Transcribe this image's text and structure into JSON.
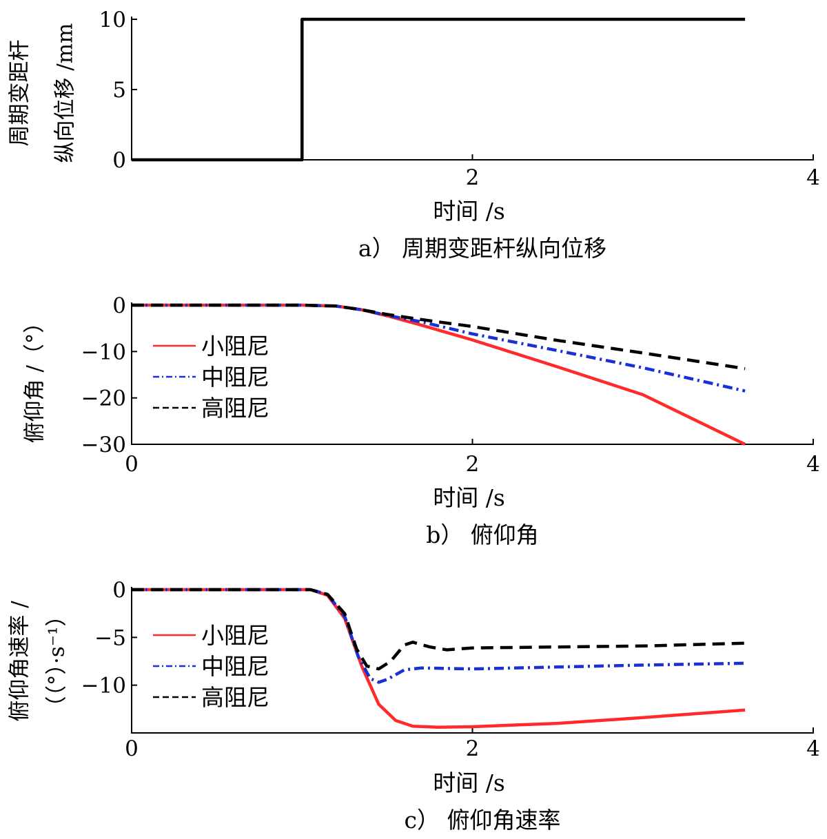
{
  "chart_data": [
    {
      "type": "line",
      "caption": "a） 周期变距杆纵向位移",
      "xlabel": "时间 /s",
      "ylabel_lines": [
        "周期变距杆",
        "纵向位移 /mm"
      ],
      "xlim": [
        0,
        4
      ],
      "ylim": [
        0,
        10
      ],
      "xticks": [
        {
          "v": 2,
          "label": "2"
        },
        {
          "v": 4,
          "label": "4"
        }
      ],
      "yticks": [
        {
          "v": 0,
          "label": "0"
        },
        {
          "v": 5,
          "label": "5"
        },
        {
          "v": 10,
          "label": "10"
        }
      ],
      "grid": false,
      "series": [
        {
          "color": "#000000",
          "dash": "solid",
          "points": [
            [
              0,
              0
            ],
            [
              1.0,
              0
            ],
            [
              1.0,
              10
            ],
            [
              3.6,
              10
            ]
          ]
        }
      ]
    },
    {
      "type": "line",
      "caption": "b） 俯仰角",
      "xlabel": "时间 /s",
      "ylabel_lines": [
        "俯仰角 /（°）"
      ],
      "xlim": [
        0,
        4
      ],
      "ylim": [
        -30,
        0
      ],
      "xticks": [
        {
          "v": 0,
          "label": "0"
        },
        {
          "v": 2,
          "label": "2"
        },
        {
          "v": 4,
          "label": "4"
        }
      ],
      "yticks": [
        {
          "v": 0,
          "label": "0"
        },
        {
          "v": -10,
          "label": "−10"
        },
        {
          "v": -20,
          "label": "−20"
        },
        {
          "v": -30,
          "label": "−30"
        }
      ],
      "grid": false,
      "legend_position": "left",
      "series": [
        {
          "name": "小阻尼",
          "color": "#ff2a2a",
          "dash": "solid",
          "points": [
            [
              0,
              0
            ],
            [
              1.0,
              0
            ],
            [
              1.2,
              -0.2
            ],
            [
              1.35,
              -1
            ],
            [
              1.5,
              -2.3
            ],
            [
              1.7,
              -4.3
            ],
            [
              2.0,
              -7.5
            ],
            [
              2.5,
              -13.3
            ],
            [
              3.0,
              -19.3
            ],
            [
              3.6,
              -30
            ]
          ]
        },
        {
          "name": "中阻尼",
          "color": "#1a2fd6",
          "dash": "dashdot",
          "points": [
            [
              0,
              0
            ],
            [
              1.0,
              0
            ],
            [
              1.2,
              -0.2
            ],
            [
              1.35,
              -1
            ],
            [
              1.5,
              -2.2
            ],
            [
              1.7,
              -3.6
            ],
            [
              2.0,
              -6.2
            ],
            [
              2.5,
              -9.8
            ],
            [
              3.0,
              -13.5
            ],
            [
              3.6,
              -18.5
            ]
          ]
        },
        {
          "name": "高阻尼",
          "color": "#000000",
          "dash": "dashed",
          "points": [
            [
              0,
              0
            ],
            [
              1.0,
              0
            ],
            [
              1.2,
              -0.2
            ],
            [
              1.35,
              -1
            ],
            [
              1.5,
              -2.0
            ],
            [
              1.7,
              -3.1
            ],
            [
              2.0,
              -4.6
            ],
            [
              2.5,
              -7.6
            ],
            [
              3.0,
              -10.3
            ],
            [
              3.6,
              -13.7
            ]
          ]
        }
      ]
    },
    {
      "type": "line",
      "caption": "c） 俯仰角速率",
      "xlabel": "时间 /s",
      "ylabel_lines": [
        "俯仰角速率 /",
        "（（°）·s⁻¹）"
      ],
      "xlim": [
        0,
        4
      ],
      "ylim": [
        -15,
        0
      ],
      "xticks": [
        {
          "v": 0,
          "label": "0"
        },
        {
          "v": 2,
          "label": "2"
        },
        {
          "v": 4,
          "label": "4"
        }
      ],
      "yticks": [
        {
          "v": 0,
          "label": "0"
        },
        {
          "v": -5,
          "label": "−5"
        },
        {
          "v": -10,
          "label": "−10"
        }
      ],
      "grid": false,
      "legend_position": "left",
      "series": [
        {
          "name": "小阻尼",
          "color": "#ff2a2a",
          "dash": "solid",
          "points": [
            [
              0,
              0
            ],
            [
              1.05,
              0
            ],
            [
              1.15,
              -0.6
            ],
            [
              1.25,
              -3
            ],
            [
              1.35,
              -8
            ],
            [
              1.45,
              -12
            ],
            [
              1.55,
              -13.7
            ],
            [
              1.65,
              -14.3
            ],
            [
              1.8,
              -14.4
            ],
            [
              2.0,
              -14.35
            ],
            [
              2.5,
              -14.0
            ],
            [
              3.0,
              -13.4
            ],
            [
              3.6,
              -12.6
            ]
          ]
        },
        {
          "name": "中阻尼",
          "color": "#1a2fd6",
          "dash": "dashdot",
          "points": [
            [
              0,
              0
            ],
            [
              1.05,
              0
            ],
            [
              1.15,
              -0.5
            ],
            [
              1.25,
              -2.8
            ],
            [
              1.33,
              -7
            ],
            [
              1.4,
              -9.3
            ],
            [
              1.45,
              -9.7
            ],
            [
              1.5,
              -9.4
            ],
            [
              1.6,
              -8.4
            ],
            [
              1.7,
              -8.2
            ],
            [
              2.0,
              -8.3
            ],
            [
              2.5,
              -8.1
            ],
            [
              3.0,
              -7.9
            ],
            [
              3.6,
              -7.7
            ]
          ]
        },
        {
          "name": "高阻尼",
          "color": "#000000",
          "dash": "dashed",
          "points": [
            [
              0,
              0
            ],
            [
              1.05,
              0
            ],
            [
              1.15,
              -0.5
            ],
            [
              1.25,
              -2.5
            ],
            [
              1.32,
              -6.2
            ],
            [
              1.38,
              -8.0
            ],
            [
              1.45,
              -8.3
            ],
            [
              1.52,
              -7.5
            ],
            [
              1.6,
              -5.8
            ],
            [
              1.65,
              -5.5
            ],
            [
              1.75,
              -6.0
            ],
            [
              1.85,
              -6.3
            ],
            [
              2.0,
              -6.1
            ],
            [
              2.5,
              -6.0
            ],
            [
              3.0,
              -5.9
            ],
            [
              3.6,
              -5.6
            ]
          ]
        }
      ]
    }
  ]
}
